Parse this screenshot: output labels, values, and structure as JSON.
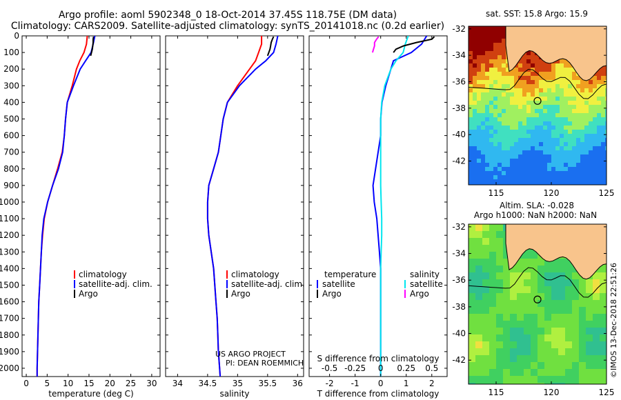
{
  "title": {
    "line1": "Argo profile: aoml 5902348_0 18-Oct-2014 37.45S 118.75E (DM data)",
    "line2": "Climatology: CARS2009. Satellite-adjusted climatology: synTS_20141018.nc (0.2d earlier)"
  },
  "depth_ticks": [
    "0",
    "100",
    "200",
    "300",
    "400",
    "500",
    "600",
    "700",
    "800",
    "900",
    "1000",
    "1100",
    "1200",
    "1300",
    "1400",
    "1500",
    "1600",
    "1700",
    "1800",
    "1900",
    "2000"
  ],
  "colors": {
    "climatology": "#ff0000",
    "satellite": "#0000ff",
    "argo": "#000000",
    "sat_salinity": "#00e5ee",
    "argo_salinity": "#ff00ff"
  },
  "chart_data": [
    {
      "type": "line",
      "name": "temperature",
      "xlabel": "temperature (deg C)",
      "ylabel": "depth",
      "xlim": [
        -1,
        32
      ],
      "ylim": [
        2050,
        0
      ],
      "xticks": [
        "0",
        "5",
        "10",
        "15",
        "20",
        "25",
        "30"
      ],
      "xtick_values": [
        0,
        5,
        10,
        15,
        20,
        25,
        30
      ],
      "legend": [
        "climatology",
        "satellite-adj. clim.",
        "Argo"
      ],
      "series": [
        {
          "name": "climatology",
          "depth": [
            0,
            50,
            100,
            150,
            200,
            300,
            400,
            500,
            600,
            700,
            800,
            900,
            1000,
            1100,
            1200,
            1300,
            1400,
            1500,
            1600,
            1700,
            1800,
            1900,
            2000,
            2050
          ],
          "values": [
            14.6,
            14.4,
            13.8,
            12.8,
            12.0,
            11.0,
            9.8,
            9.4,
            9.1,
            8.6,
            7.5,
            6.3,
            5.1,
            4.3,
            3.9,
            3.6,
            3.4,
            3.2,
            3.0,
            2.9,
            2.8,
            2.7,
            2.6,
            2.6
          ]
        },
        {
          "name": "satellite-adj. clim.",
          "depth": [
            0,
            50,
            100,
            150,
            200,
            300,
            400,
            500,
            600,
            700,
            800,
            900,
            1000,
            1100,
            1200,
            1300,
            1400,
            1500,
            1600,
            1700,
            1800,
            1900,
            2000,
            2050
          ],
          "values": [
            16.4,
            16.0,
            15.5,
            14.2,
            12.9,
            11.3,
            9.8,
            9.4,
            9.1,
            8.7,
            7.7,
            6.3,
            5.1,
            4.2,
            3.8,
            3.6,
            3.4,
            3.2,
            3.0,
            2.9,
            2.8,
            2.7,
            2.6,
            2.6
          ]
        },
        {
          "name": "Argo",
          "depth": [
            5,
            20,
            40,
            60,
            80,
            100,
            120
          ],
          "values": [
            16.1,
            16.0,
            16.0,
            15.9,
            15.8,
            15.6,
            15.4
          ]
        }
      ]
    },
    {
      "type": "line",
      "name": "salinity",
      "xlabel": "salinity",
      "xlim": [
        33.8,
        36.1
      ],
      "ylim": [
        2050,
        0
      ],
      "xticks": [
        "34",
        "34.5",
        "35",
        "35.5",
        "36"
      ],
      "xtick_values": [
        34,
        34.5,
        35,
        35.5,
        36
      ],
      "legend": [
        "climatology",
        "satellite-adj. clim.",
        "Argo"
      ],
      "series": [
        {
          "name": "climatology",
          "depth": [
            0,
            50,
            100,
            150,
            200,
            300,
            400,
            500,
            600,
            700,
            800,
            900,
            1000,
            1100,
            1200,
            1300,
            1400,
            1500,
            1600,
            1700,
            1800,
            1900,
            2000,
            2050
          ],
          "values": [
            35.4,
            35.4,
            35.35,
            35.3,
            35.2,
            35.0,
            34.83,
            34.76,
            34.72,
            34.68,
            34.6,
            34.52,
            34.5,
            34.5,
            34.52,
            34.56,
            34.6,
            34.62,
            34.64,
            34.66,
            34.67,
            34.68,
            34.7,
            34.71
          ]
        },
        {
          "name": "satellite-adj. clim.",
          "depth": [
            0,
            50,
            100,
            150,
            200,
            300,
            400,
            500,
            600,
            700,
            800,
            900,
            1000,
            1100,
            1200,
            1300,
            1400,
            1500,
            1600,
            1700,
            1800,
            1900,
            2000,
            2050
          ],
          "values": [
            35.67,
            35.64,
            35.6,
            35.47,
            35.3,
            35.03,
            34.83,
            34.76,
            34.72,
            34.68,
            34.6,
            34.52,
            34.5,
            34.5,
            34.52,
            34.56,
            34.6,
            34.62,
            34.64,
            34.66,
            34.67,
            34.68,
            34.7,
            34.71
          ]
        },
        {
          "name": "Argo",
          "depth": [
            5,
            20,
            40,
            60,
            80,
            100,
            120
          ],
          "values": [
            35.6,
            35.58,
            35.56,
            35.55,
            35.54,
            35.52,
            35.5
          ]
        }
      ],
      "annotation": [
        "US ARGO PROJECT",
        "PI: DEAN ROEMMICH"
      ]
    },
    {
      "type": "line",
      "name": "difference",
      "xlabel": "T difference from climatology",
      "xlabel_top": "S difference from climatology",
      "xlim": [
        -2.8,
        2.6
      ],
      "ylim": [
        2050,
        0
      ],
      "xticks": [
        "-2",
        "-1",
        "0",
        "1",
        "2"
      ],
      "xtick_values": [
        -2,
        -1,
        0,
        1,
        2
      ],
      "s_ticks": [
        "-0.5",
        "-0.25",
        "0",
        "0.25",
        "0.5"
      ],
      "s_tick_values": [
        -0.5,
        -0.25,
        0,
        0.25,
        0.5
      ],
      "legend_left": [
        "temperature",
        "satellite",
        "Argo"
      ],
      "legend_right": [
        "salinity",
        "satellite",
        "Argo"
      ],
      "series": [
        {
          "name": "T satellite",
          "depth": [
            0,
            50,
            100,
            150,
            200,
            300,
            400,
            500,
            600,
            700,
            800,
            900,
            1000,
            1100,
            1200,
            1300,
            1400,
            1500,
            1600,
            1700,
            1800,
            1900,
            2000,
            2050
          ],
          "values": [
            1.8,
            1.6,
            1.2,
            0.5,
            0.4,
            0.2,
            0.05,
            0,
            0,
            -0.1,
            -0.2,
            -0.3,
            -0.25,
            -0.15,
            -0.1,
            -0.05,
            0,
            0,
            0,
            0,
            0,
            0,
            0,
            0
          ]
        },
        {
          "name": "S satellite",
          "depth": [
            0,
            50,
            100,
            150,
            200,
            300,
            400,
            500,
            600,
            700,
            800,
            900,
            1000,
            1100,
            1200,
            1300,
            1400,
            1500,
            1600,
            1700,
            1800,
            1900,
            2000,
            2050
          ],
          "values": [
            0.27,
            0.24,
            0.22,
            0.15,
            0.1,
            0.04,
            0.01,
            0,
            0,
            0,
            0,
            0,
            0.005,
            0.01,
            0.01,
            0.005,
            0,
            0,
            0,
            0,
            0,
            0,
            0,
            0
          ]
        },
        {
          "name": "T Argo",
          "depth": [
            5,
            20,
            40,
            60,
            80,
            100
          ],
          "values": [
            2.1,
            2.0,
            1.4,
            0.9,
            0.6,
            0.5
          ]
        },
        {
          "name": "S Argo",
          "depth": [
            5,
            20,
            40,
            60,
            80,
            100
          ],
          "values": [
            -0.02,
            -0.04,
            -0.06,
            -0.06,
            -0.07,
            -0.08
          ]
        }
      ]
    },
    {
      "type": "heatmap",
      "name": "sst_map",
      "title": "sat. SST: 15.8 Argo: 15.9",
      "xticks": [
        "115",
        "120",
        "125"
      ],
      "xtick_values": [
        115,
        120,
        125
      ],
      "yticks": [
        "-32",
        "-34",
        "-36",
        "-38",
        "-40",
        "-42"
      ],
      "ytick_values": [
        -32,
        -34,
        -36,
        -38,
        -40,
        -42
      ],
      "xlim": [
        112.5,
        125
      ],
      "ylim": [
        -43.8,
        -31.8
      ],
      "marker": {
        "lon": 118.75,
        "lat": -37.45
      }
    },
    {
      "type": "heatmap",
      "name": "sla_map",
      "title": "Altim. SLA: -0.028",
      "subtitle": "Argo h1000: NaN h2000: NaN",
      "xticks": [
        "115",
        "120",
        "125"
      ],
      "xtick_values": [
        115,
        120,
        125
      ],
      "yticks": [
        "-32",
        "-34",
        "-36",
        "-38",
        "-40",
        "-42"
      ],
      "ytick_values": [
        -32,
        -34,
        -36,
        -38,
        -40,
        -42
      ],
      "xlim": [
        112.5,
        125
      ],
      "ylim": [
        -43.8,
        -31.8
      ],
      "marker": {
        "lon": 118.75,
        "lat": -37.45
      }
    }
  ],
  "footer_stamp": "©IMOS 13-Dec-2018 22:51:26"
}
